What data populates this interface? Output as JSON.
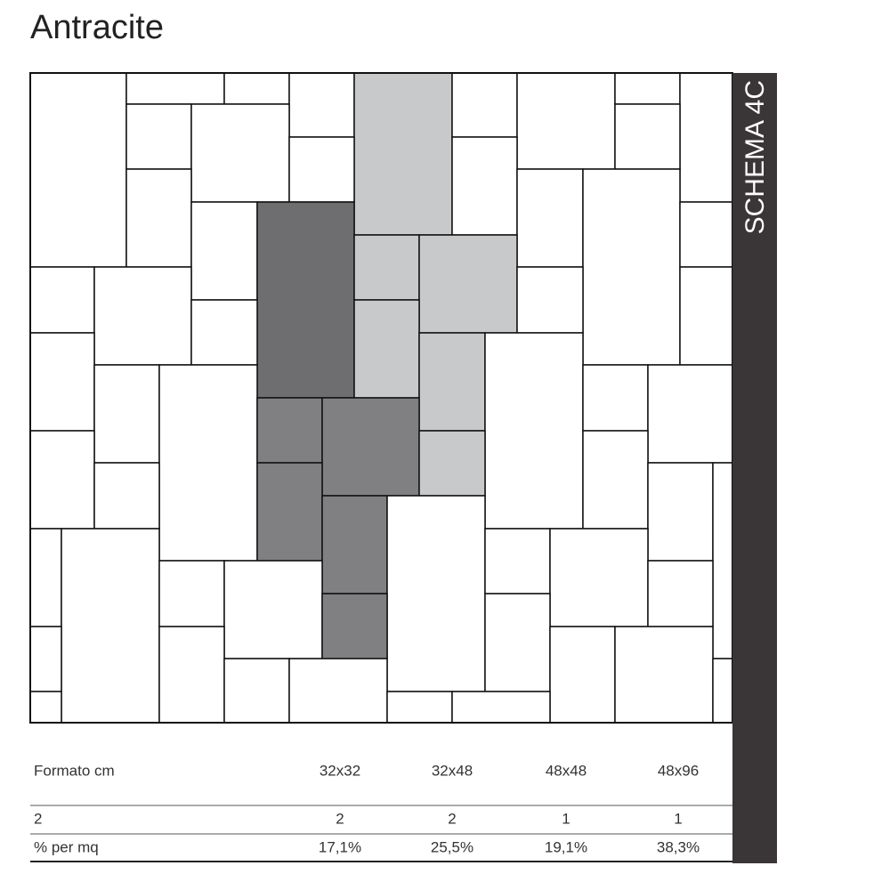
{
  "header": {
    "title": "Antracite"
  },
  "side_label": "SCHEMA 4C",
  "table": {
    "header": [
      "Formato cm",
      "32x32",
      "32x48",
      "48x48",
      "48x96"
    ],
    "rows": [
      [
        "2",
        "2",
        "2",
        "1",
        "1"
      ],
      [
        "% per mq",
        "17,1%",
        "25,5%",
        "19,1%",
        "38,3%"
      ]
    ]
  }
}
